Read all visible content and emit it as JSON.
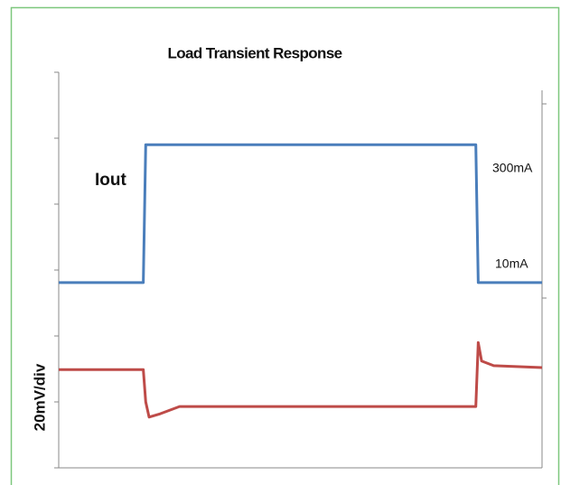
{
  "chart_data": {
    "type": "line",
    "title": "Load Transient Response",
    "y_label": "20mV/div",
    "series": [
      {
        "name": "Iout",
        "color": "#4a7ebb",
        "x": [
          0,
          1.75,
          1.8,
          8.63,
          8.68,
          10
        ],
        "values": [
          2.81,
          2.81,
          4.9,
          4.9,
          2.81,
          2.81
        ]
      },
      {
        "color": "#be4b48",
        "x": [
          0,
          1.75,
          1.8,
          1.87,
          2.1,
          2.5,
          8.63,
          8.68,
          8.75,
          9.0,
          10
        ],
        "values": [
          1.49,
          1.49,
          1.0,
          0.77,
          0.82,
          0.93,
          0.93,
          1.9,
          1.62,
          1.55,
          1.52
        ]
      }
    ],
    "annotations": [
      "300mA",
      "10mA"
    ],
    "xlim": [
      0,
      10
    ],
    "ylim": [
      0,
      6
    ],
    "yticks": [
      0,
      1,
      2,
      3,
      4,
      5,
      6
    ]
  }
}
